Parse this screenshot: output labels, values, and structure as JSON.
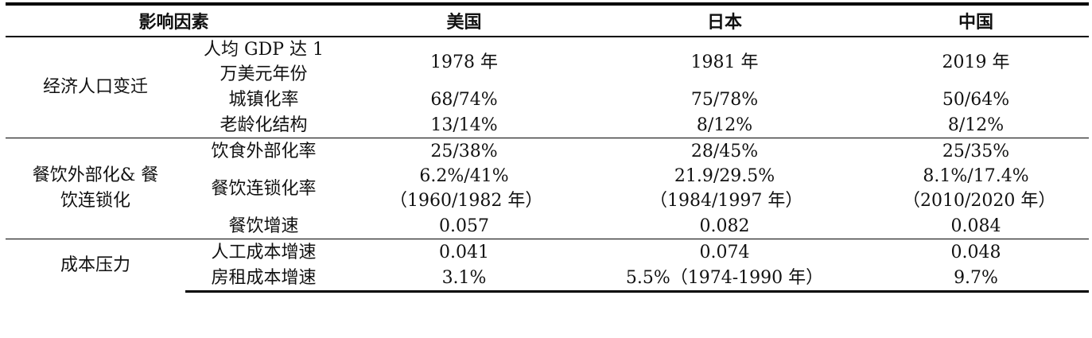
{
  "header": [
    "影响因素",
    "美国",
    "日本",
    "中国"
  ],
  "groups": [
    {
      "name": "经济人口变迁",
      "rows": [
        {
          "factor": "人均 GDP 达 1 万美元年份",
          "usa": "1978 年",
          "japan": "1981 年",
          "china": "2019 年"
        },
        {
          "factor": "城镇化率",
          "usa": "68/74%",
          "japan": "75/78%",
          "china": "50/64%"
        },
        {
          "factor": "老龄化结构",
          "usa": "13/14%",
          "japan": "8/12%",
          "china": "8/12%"
        }
      ]
    },
    {
      "name": "餐饮外部化& 餐饮连锁化",
      "rows": [
        {
          "factor": "饮食外部化率",
          "usa": "25/38%",
          "japan": "28/45%",
          "china": "25/35%"
        },
        {
          "factor": "餐饮连锁化率",
          "usa": "6.2%/41% （1960/1982 年）",
          "japan": "21.9/29.5% （1984/1997 年）",
          "china": "8.1%/17.4% （2010/2020 年）"
        },
        {
          "factor": "餐饮增速",
          "usa": "0.057",
          "japan": "0.082",
          "china": "0.084"
        }
      ]
    },
    {
      "name": "成本压力",
      "rows": [
        {
          "factor": "人工成本增速",
          "usa": "0.041",
          "japan": "0.074",
          "china": "0.048"
        },
        {
          "factor": "房租成本增速",
          "usa": "3.1%",
          "japan": "5.5%（1974-1990 年）",
          "china": "9.7%"
        }
      ]
    }
  ]
}
